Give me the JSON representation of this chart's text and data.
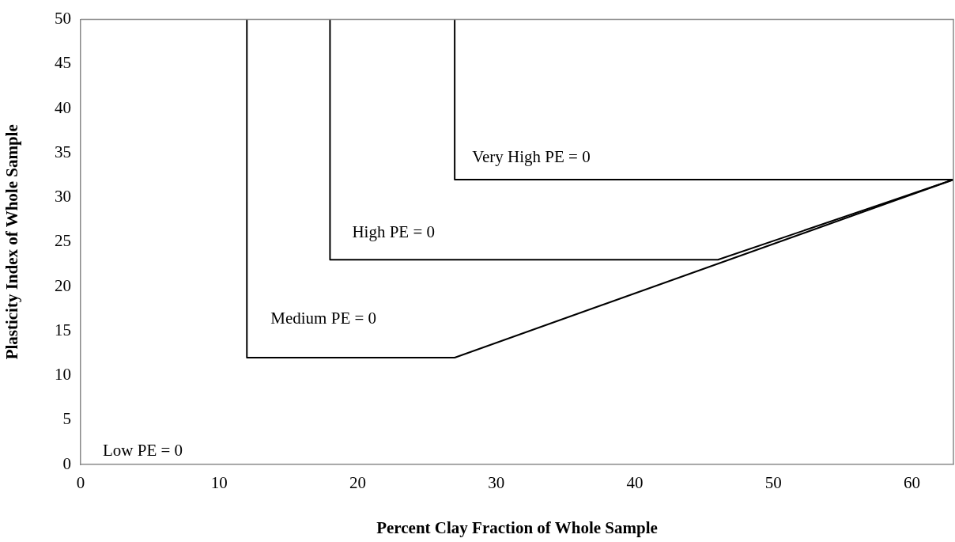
{
  "chart_data": {
    "type": "line",
    "xlabel": "Percent Clay Fraction of Whole Sample",
    "ylabel": "Plasticity Index of Whole Sample",
    "xlim": [
      0,
      63
    ],
    "xticks": [
      0,
      10,
      20,
      30,
      40,
      50,
      60
    ],
    "ylim": [
      0,
      50
    ],
    "yticks": [
      0,
      5,
      10,
      15,
      20,
      25,
      30,
      35,
      40,
      45,
      50
    ],
    "marker": "none",
    "line_style": "solid",
    "legend": false,
    "series": [
      {
        "color": "#000000",
        "x": [
          12,
          12,
          27,
          63
        ],
        "values": [
          50,
          12,
          12,
          32
        ]
      },
      {
        "color": "#000000",
        "x": [
          18,
          18,
          46,
          63
        ],
        "values": [
          50,
          23,
          23,
          32
        ]
      },
      {
        "color": "#000000",
        "x": [
          27,
          27,
          63
        ],
        "values": [
          50,
          32,
          32
        ]
      }
    ],
    "annotations": [
      "Low PE = 0",
      "Medium PE = 0",
      "High PE = 0",
      "Very High PE = 0"
    ]
  }
}
